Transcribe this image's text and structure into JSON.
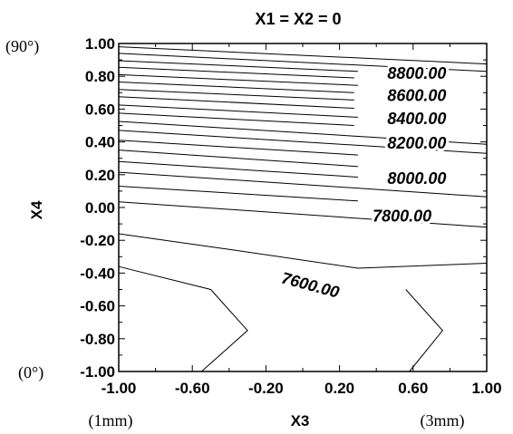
{
  "chart_data": {
    "type": "line",
    "subtype": "contour",
    "title": "X1 = X2 = 0",
    "xlabel": "X3",
    "ylabel": "X4",
    "xlim": [
      -1.0,
      1.0
    ],
    "ylim": [
      -1.0,
      1.0
    ],
    "xticks": [
      "-1.00",
      "-0.60",
      "-0.20",
      "0.20",
      "0.60",
      "1.00"
    ],
    "yticks": [
      "1.00",
      "0.80",
      "0.60",
      "0.40",
      "0.20",
      "0.00",
      "-0.20",
      "-0.40",
      "-0.60",
      "-0.80",
      "-1.00"
    ],
    "y_end_annotations": {
      "top": "(90°)",
      "bottom": "(0°)"
    },
    "x_end_annotations": {
      "left": "(1mm)",
      "right": "(3mm)"
    },
    "grid": false,
    "contour_labels": [
      {
        "text": "8800.00",
        "x": 0.62,
        "y": 0.81
      },
      {
        "text": "8600.00",
        "x": 0.62,
        "y": 0.675
      },
      {
        "text": "8400.00",
        "x": 0.62,
        "y": 0.535
      },
      {
        "text": "8200.00",
        "x": 0.62,
        "y": 0.385
      },
      {
        "text": "8000.00",
        "x": 0.62,
        "y": 0.17
      },
      {
        "text": "7800.00",
        "x": 0.54,
        "y": -0.06
      },
      {
        "text": "7600.00",
        "x": 0.04,
        "y": -0.48,
        "rotation": 15
      }
    ],
    "series": [
      {
        "values": [
          [
            -1.0,
            0.98
          ],
          [
            1.0,
            0.875
          ]
        ]
      },
      {
        "values": [
          [
            -1.0,
            0.94
          ],
          [
            1.0,
            0.83
          ]
        ]
      },
      {
        "values": [
          [
            -1.0,
            0.895
          ],
          [
            0.3,
            0.83
          ]
        ]
      },
      {
        "values": [
          [
            -1.0,
            0.855
          ],
          [
            0.28,
            0.79
          ]
        ]
      },
      {
        "values": [
          [
            -1.0,
            0.81
          ],
          [
            0.3,
            0.745
          ]
        ]
      },
      {
        "values": [
          [
            -1.0,
            0.765
          ],
          [
            0.28,
            0.7
          ]
        ]
      },
      {
        "values": [
          [
            -1.0,
            0.72
          ],
          [
            0.28,
            0.655
          ]
        ]
      },
      {
        "values": [
          [
            -1.0,
            0.675
          ],
          [
            0.28,
            0.605
          ]
        ]
      },
      {
        "values": [
          [
            -1.0,
            0.625
          ],
          [
            0.3,
            0.55
          ]
        ]
      },
      {
        "values": [
          [
            -1.0,
            0.575
          ],
          [
            0.28,
            0.5
          ]
        ]
      },
      {
        "values": [
          [
            -1.0,
            0.525
          ],
          [
            1.0,
            0.385
          ]
        ]
      },
      {
        "values": [
          [
            -1.0,
            0.47
          ],
          [
            1.0,
            0.33
          ]
        ]
      },
      {
        "values": [
          [
            -1.0,
            0.41
          ],
          [
            0.3,
            0.32
          ]
        ]
      },
      {
        "values": [
          [
            -1.0,
            0.35
          ],
          [
            0.3,
            0.25
          ]
        ]
      },
      {
        "values": [
          [
            -1.0,
            0.28
          ],
          [
            0.3,
            0.185
          ]
        ]
      },
      {
        "values": [
          [
            -1.0,
            0.215
          ],
          [
            1.0,
            0.065
          ]
        ]
      },
      {
        "values": [
          [
            -1.0,
            0.13
          ],
          [
            0.3,
            0.04
          ]
        ]
      },
      {
        "values": [
          [
            -1.0,
            0.035
          ],
          [
            1.0,
            -0.12
          ]
        ]
      },
      {
        "values": [
          [
            -1.0,
            -0.16
          ],
          [
            -0.4,
            -0.255
          ],
          [
            0.3,
            -0.37
          ],
          [
            1.0,
            -0.34
          ]
        ]
      },
      {
        "values": [
          [
            -1.0,
            -0.36
          ],
          [
            -0.5,
            -0.5
          ],
          [
            -0.3,
            -0.75
          ],
          [
            -0.55,
            -1.0
          ]
        ]
      },
      {
        "values": [
          [
            0.56,
            -0.5
          ],
          [
            0.76,
            -0.75
          ],
          [
            0.58,
            -1.0
          ]
        ]
      }
    ]
  }
}
